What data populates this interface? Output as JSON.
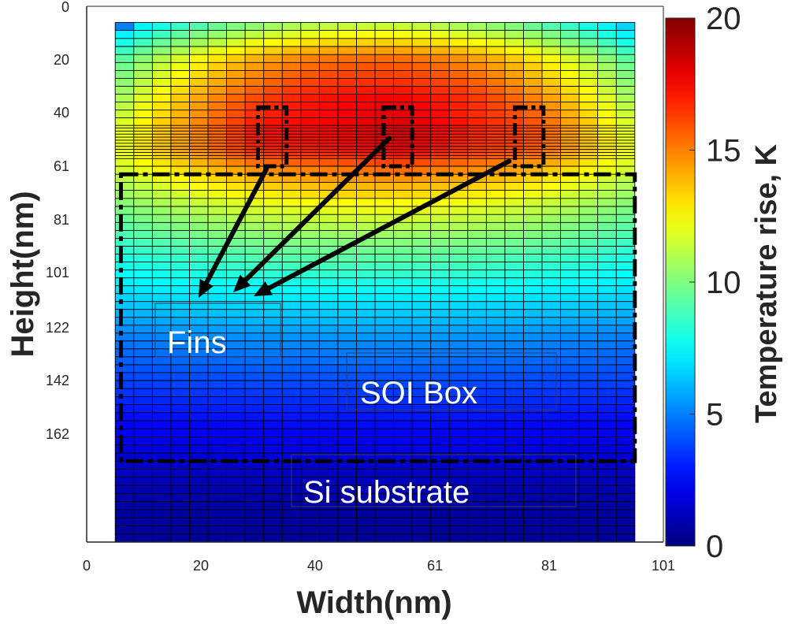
{
  "chart_data": {
    "type": "heatmap",
    "xlabel": "Width(nm)",
    "ylabel": "Height(nm)",
    "x_ticks": [
      "0",
      "20",
      "40",
      "61",
      "81",
      "101"
    ],
    "y_ticks": [
      "0",
      "20",
      "40",
      "61",
      "81",
      "101",
      "122",
      "142",
      "162"
    ],
    "xlim": [
      0,
      101
    ],
    "ylim": [
      0,
      200
    ],
    "y_direction": "down",
    "colorbar": {
      "label": "Temperature rise, K",
      "range": [
        0,
        20
      ],
      "ticks": [
        "0",
        "5",
        "10",
        "15",
        "20"
      ],
      "colormap": "jet"
    },
    "grid_region": {
      "x_range": [
        5,
        96
      ],
      "y_range": [
        6,
        202
      ],
      "n_cols": 28
    },
    "hotspots_x": [
      30,
      55,
      78
    ],
    "fins": [
      {
        "x": [
          30,
          35
        ],
        "y": [
          38,
          61
        ]
      },
      {
        "x": [
          52,
          57
        ],
        "y": [
          38,
          61
        ]
      },
      {
        "x": [
          75,
          80
        ],
        "y": [
          38,
          61
        ]
      }
    ],
    "soi_box": {
      "x": [
        6,
        96
      ],
      "y": [
        64,
        172
      ]
    },
    "temperature_profile": [
      {
        "y": 6,
        "edge": 6,
        "center": 11
      },
      {
        "y": 20,
        "edge": 9,
        "center": 15.5
      },
      {
        "y": 35,
        "edge": 10.5,
        "center": 17.5
      },
      {
        "y": 45,
        "edge": 11.5,
        "center": 17.8
      },
      {
        "y": 55,
        "edge": 11.8,
        "center": 17.2
      },
      {
        "y": 61,
        "edge": 11.5,
        "center": 15.5
      },
      {
        "y": 75,
        "edge": 10,
        "center": 12.5
      },
      {
        "y": 90,
        "edge": 8.5,
        "center": 10
      },
      {
        "y": 101,
        "edge": 7.5,
        "center": 8.5
      },
      {
        "y": 112,
        "edge": 6.5,
        "center": 7
      },
      {
        "y": 125,
        "edge": 5,
        "center": 5.5
      },
      {
        "y": 142,
        "edge": 3.8,
        "center": 4
      },
      {
        "y": 162,
        "edge": 2.2,
        "center": 2.4
      },
      {
        "y": 172,
        "edge": 1.5,
        "center": 1.6
      },
      {
        "y": 185,
        "edge": 0.8,
        "center": 0.8
      },
      {
        "y": 202,
        "edge": 0.5,
        "center": 0.5
      }
    ],
    "annotations": [
      "Fins",
      "SOI Box",
      "Si substrate"
    ]
  }
}
